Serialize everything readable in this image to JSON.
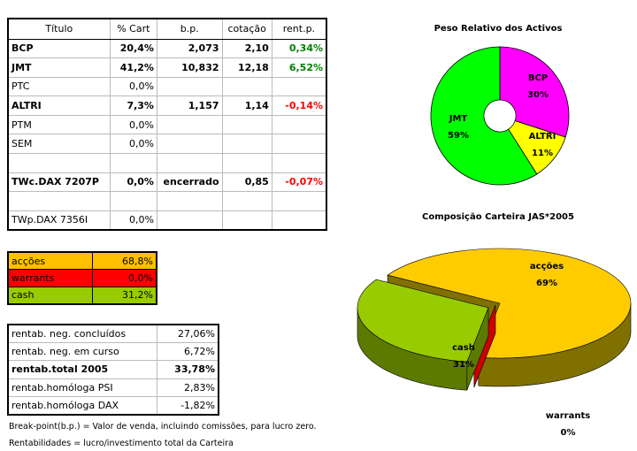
{
  "table_positions": {
    "header": [
      "Título",
      "% Cart",
      "b.p.",
      "cotação",
      "rent.p."
    ],
    "rows": [
      {
        "cells": [
          "BCP",
          "20,4%",
          "2,073",
          "2,10",
          "0,34%"
        ],
        "bold": true,
        "rent_color": "#008000"
      },
      {
        "cells": [
          "JMT",
          "41,2%",
          "10,832",
          "12,18",
          "6,52%"
        ],
        "bold": true,
        "rent_color": "#008000"
      },
      {
        "cells": [
          "PTC",
          "0,0%",
          null,
          null,
          null
        ],
        "bold": false
      },
      {
        "cells": [
          "ALTRI",
          "7,3%",
          "1,157",
          "1,14",
          "-0,14%"
        ],
        "bold": true,
        "rent_color": "#ff0000"
      },
      {
        "cells": [
          "PTM",
          "0,0%",
          null,
          null,
          null
        ],
        "bold": false
      },
      {
        "cells": [
          "SEM",
          "0,0%",
          null,
          null,
          null
        ],
        "bold": false
      },
      {
        "cells": [
          null,
          null,
          null,
          null,
          null
        ],
        "bold": false
      },
      {
        "cells": [
          "TWc.DAX 7207P",
          "0,0%",
          "encerrado",
          "0,85",
          "-0,07%"
        ],
        "bold": true,
        "rent_color": "#ff0000"
      },
      {
        "cells": [
          null,
          null,
          null,
          null,
          null
        ],
        "bold": false
      },
      {
        "cells": [
          "TWp.DAX 7356I",
          "0,0%",
          null,
          null,
          null
        ],
        "bold": false
      }
    ]
  },
  "table_allocation": {
    "rows": [
      {
        "cells": [
          "acções",
          "68,8%"
        ],
        "color": "#ffc000"
      },
      {
        "cells": [
          "warrants",
          "0,0%"
        ],
        "color": "#ff0000"
      },
      {
        "cells": [
          "cash",
          "31,2%"
        ],
        "color": "#99cc00"
      }
    ]
  },
  "table_returns": {
    "rows": [
      {
        "cells": [
          "rentab. neg. concluídos",
          "27,06%"
        ],
        "bold": false
      },
      {
        "cells": [
          "rentab. neg. em curso",
          "6,72%"
        ],
        "bold": false
      },
      {
        "cells": [
          "rentab.total 2005",
          "33,78%"
        ],
        "bold": true
      },
      {
        "cells": [
          "rentab.homóloga PSI",
          "2,83%"
        ],
        "bold": false
      },
      {
        "cells": [
          "rentab.homóloga DAX",
          "-1,82%"
        ],
        "bold": false
      }
    ]
  },
  "notes": [
    "Break-point(b.p.) = Valor de venda, incluindo comissões, para lucro zero.",
    "Rentabilidades = lucro/investimento total da Carteira"
  ],
  "chart_data": [
    {
      "type": "pie",
      "title": "Peso Relativo dos Activos",
      "donut": true,
      "categories": [
        "BCP",
        "ALTRI",
        "JMT"
      ],
      "values": [
        30,
        11,
        59
      ],
      "value_labels": [
        "30%",
        "11%",
        "59%"
      ],
      "colors": [
        "#ff00ff",
        "#ffff00",
        "#00ff00"
      ]
    },
    {
      "type": "pie",
      "title": "Composição Carteira JAS*2005",
      "three_d": true,
      "categories": [
        "acções",
        "warrants",
        "cash"
      ],
      "values": [
        69,
        0,
        31
      ],
      "value_labels": [
        "69%",
        "0%",
        "31%"
      ],
      "colors": [
        "#ffcc00",
        "#cc0000",
        "#99cc00"
      ],
      "side_colors": [
        "#807000",
        "#800000",
        "#5c7a00"
      ]
    }
  ]
}
